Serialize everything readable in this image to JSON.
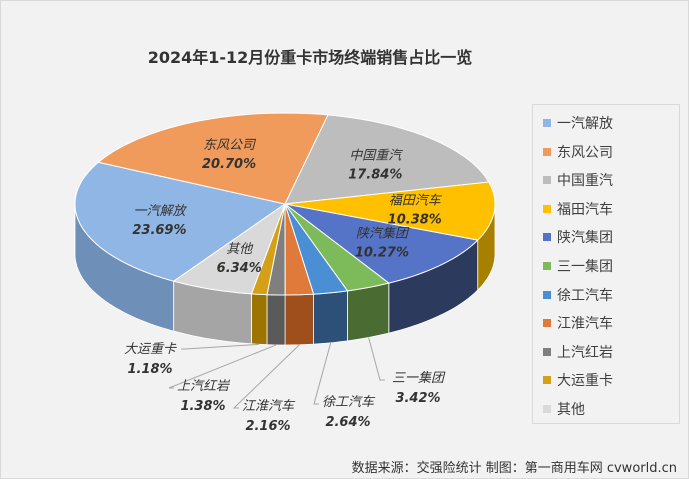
{
  "title": "2024年1-12月份重卡市场终端销售占比一览",
  "footer": "数据来源：交强险统计   制图：第一商用车网 cvworld.cn",
  "chart_data": {
    "type": "pie",
    "title": "2024年1-12月份重卡市场终端销售占比一览",
    "legend_position": "right",
    "categories": [
      "一汽解放",
      "东风公司",
      "中国重汽",
      "福田汽车",
      "陕汽集团",
      "三一集团",
      "徐工汽车",
      "江淮汽车",
      "上汽红岩",
      "大运重卡",
      "其他"
    ],
    "values": [
      23.69,
      20.7,
      17.84,
      10.38,
      10.27,
      3.42,
      2.64,
      2.16,
      1.38,
      1.18,
      6.34
    ],
    "labels": [
      "23.69%",
      "20.70%",
      "17.84%",
      "10.38%",
      "10.27%",
      "3.42%",
      "2.64%",
      "2.16%",
      "1.38%",
      "1.18%",
      "6.34%"
    ],
    "colors": [
      "#8fb6e4",
      "#f09a5c",
      "#bdbdbd",
      "#ffc000",
      "#5573c7",
      "#7dbb5a",
      "#4a8fd3",
      "#e07a3a",
      "#7f7f7f",
      "#d4a017",
      "#d9d9d9"
    ],
    "side_colors": [
      "#6d8fb8",
      "#b8602a",
      "#8a8a8a",
      "#a88000",
      "#2c3a5e",
      "#4a6b32",
      "#2c5078",
      "#9e4f1c",
      "#5a5a5a",
      "#9c7400",
      "#a5a5a5"
    ]
  }
}
